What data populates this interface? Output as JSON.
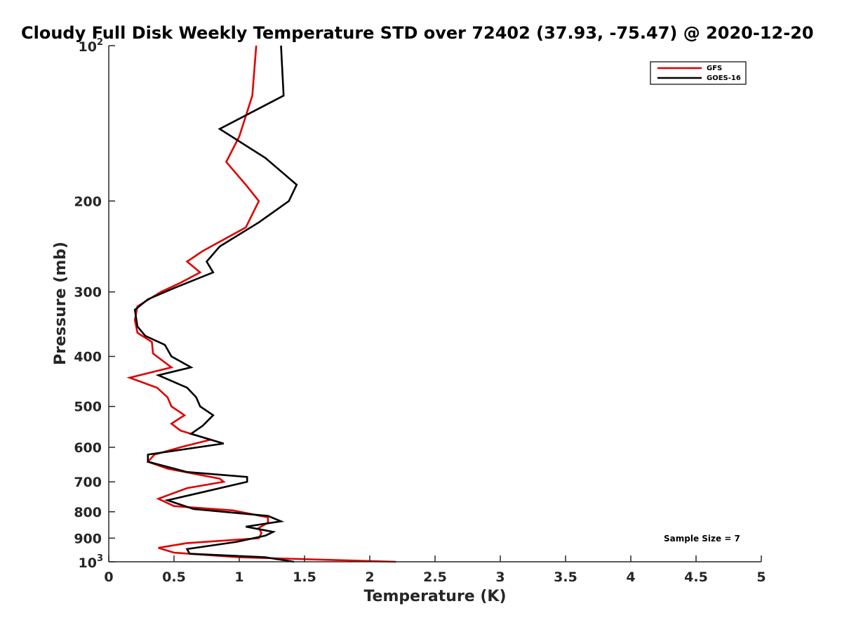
{
  "chart_data": {
    "type": "line",
    "title": "Cloudy Full Disk Weekly Temperature STD over 72402 (37.93, -75.47) @ 2020-12-20",
    "xlabel": "Temperature (K)",
    "ylabel": "Pressure (mb)",
    "xlim": [
      0,
      5
    ],
    "ylim": [
      100,
      1000
    ],
    "y_scale": "log",
    "y_reversed": true,
    "x_ticks": [
      "0",
      "0.5",
      "1",
      "1.5",
      "2",
      "2.5",
      "3",
      "3.5",
      "4",
      "4.5",
      "5"
    ],
    "y_ticks": [
      {
        "value": 100,
        "base": "10",
        "exp": "2"
      },
      {
        "value": 200,
        "label": "200"
      },
      {
        "value": 300,
        "label": "300"
      },
      {
        "value": 400,
        "label": "400"
      },
      {
        "value": 500,
        "label": "500"
      },
      {
        "value": 600,
        "label": "600"
      },
      {
        "value": 700,
        "label": "700"
      },
      {
        "value": 800,
        "label": "800"
      },
      {
        "value": 900,
        "label": "900"
      },
      {
        "value": 1000,
        "base": "10",
        "exp": "3"
      }
    ],
    "legend_position": "top-right",
    "annotation": "Sample Size = 7",
    "series": [
      {
        "name": "GFS",
        "color": "#e00000",
        "points": [
          [
            1.13,
            100
          ],
          [
            1.1,
            125
          ],
          [
            1.0,
            150
          ],
          [
            0.9,
            168
          ],
          [
            1.05,
            186
          ],
          [
            1.15,
            200
          ],
          [
            1.05,
            225
          ],
          [
            0.72,
            250
          ],
          [
            0.6,
            262
          ],
          [
            0.7,
            275
          ],
          [
            0.55,
            288
          ],
          [
            0.4,
            300
          ],
          [
            0.22,
            320
          ],
          [
            0.2,
            340
          ],
          [
            0.22,
            360
          ],
          [
            0.33,
            375
          ],
          [
            0.34,
            395
          ],
          [
            0.48,
            420
          ],
          [
            0.16,
            440
          ],
          [
            0.37,
            460
          ],
          [
            0.45,
            480
          ],
          [
            0.48,
            500
          ],
          [
            0.58,
            520
          ],
          [
            0.48,
            540
          ],
          [
            0.55,
            557
          ],
          [
            0.78,
            580
          ],
          [
            0.55,
            600
          ],
          [
            0.35,
            620
          ],
          [
            0.3,
            640
          ],
          [
            0.45,
            660
          ],
          [
            0.85,
            690
          ],
          [
            0.88,
            700
          ],
          [
            0.6,
            720
          ],
          [
            0.38,
            755
          ],
          [
            0.5,
            780
          ],
          [
            0.95,
            795
          ],
          [
            1.22,
            820
          ],
          [
            1.22,
            840
          ],
          [
            1.15,
            860
          ],
          [
            1.17,
            880
          ],
          [
            1.15,
            900
          ],
          [
            0.6,
            920
          ],
          [
            0.38,
            940
          ],
          [
            0.5,
            960
          ],
          [
            1.0,
            980
          ],
          [
            2.2,
            1000
          ]
        ]
      },
      {
        "name": "GOES-16",
        "color": "#000000",
        "points": [
          [
            1.32,
            100
          ],
          [
            1.34,
            125
          ],
          [
            0.85,
            145
          ],
          [
            1.2,
            165
          ],
          [
            1.44,
            186
          ],
          [
            1.38,
            200
          ],
          [
            1.15,
            220
          ],
          [
            0.85,
            245
          ],
          [
            0.75,
            262
          ],
          [
            0.8,
            275
          ],
          [
            0.5,
            295
          ],
          [
            0.3,
            310
          ],
          [
            0.2,
            325
          ],
          [
            0.22,
            350
          ],
          [
            0.28,
            365
          ],
          [
            0.43,
            380
          ],
          [
            0.48,
            400
          ],
          [
            0.63,
            420
          ],
          [
            0.38,
            435
          ],
          [
            0.6,
            460
          ],
          [
            0.67,
            480
          ],
          [
            0.7,
            500
          ],
          [
            0.8,
            520
          ],
          [
            0.72,
            545
          ],
          [
            0.63,
            565
          ],
          [
            0.88,
            590
          ],
          [
            0.3,
            620
          ],
          [
            0.3,
            640
          ],
          [
            0.6,
            670
          ],
          [
            1.06,
            685
          ],
          [
            1.06,
            700
          ],
          [
            0.7,
            735
          ],
          [
            0.45,
            760
          ],
          [
            0.65,
            790
          ],
          [
            1.22,
            815
          ],
          [
            1.32,
            835
          ],
          [
            1.05,
            855
          ],
          [
            1.26,
            875
          ],
          [
            1.2,
            890
          ],
          [
            0.98,
            915
          ],
          [
            0.6,
            945
          ],
          [
            0.62,
            965
          ],
          [
            1.2,
            980
          ],
          [
            1.42,
            1000
          ]
        ]
      }
    ]
  }
}
